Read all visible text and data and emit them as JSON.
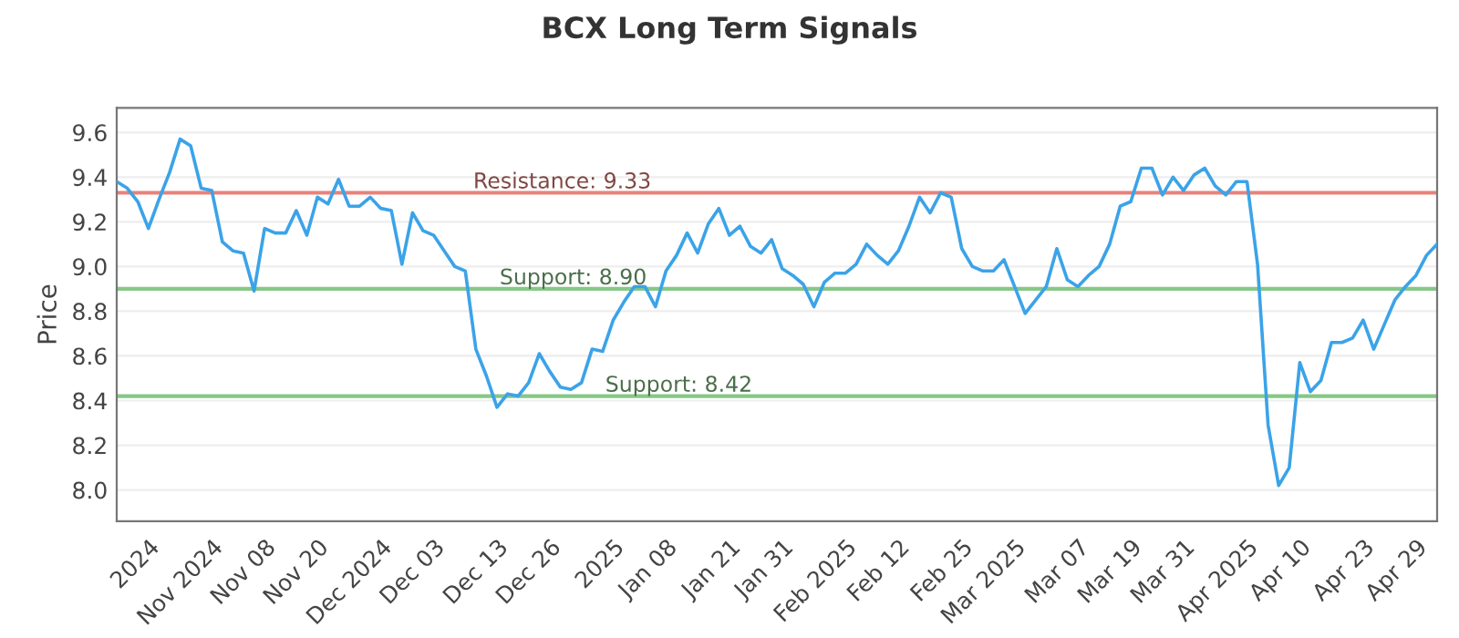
{
  "chart_data": {
    "type": "line",
    "title": "BCX Long Term Signals",
    "ylabel": "Price",
    "categories": [
      null,
      null,
      null,
      "2024",
      null,
      null,
      null,
      null,
      null,
      "Nov 2024",
      null,
      null,
      null,
      null,
      "Nov 08",
      null,
      null,
      null,
      null,
      "Nov 20",
      null,
      null,
      null,
      null,
      null,
      "Dec 2024",
      null,
      null,
      null,
      null,
      "Dec 03",
      null,
      null,
      null,
      null,
      null,
      "Dec 13",
      null,
      null,
      null,
      null,
      "Dec 26",
      null,
      null,
      null,
      null,
      null,
      "2025",
      null,
      null,
      null,
      null,
      "Jan 08",
      null,
      null,
      null,
      null,
      null,
      "Jan 21",
      null,
      null,
      null,
      null,
      "Jan 31",
      null,
      null,
      null,
      null,
      null,
      "Feb 2025",
      null,
      null,
      null,
      null,
      "Feb 12",
      null,
      null,
      null,
      null,
      null,
      "Feb 25",
      null,
      null,
      null,
      null,
      "Mar 2025",
      null,
      null,
      null,
      null,
      null,
      "Mar 07",
      null,
      null,
      null,
      null,
      "Mar 19",
      null,
      null,
      null,
      null,
      "Mar 31",
      null,
      null,
      null,
      null,
      null,
      "Apr 2025",
      null,
      null,
      null,
      null,
      "Apr 10",
      null,
      null,
      null,
      null,
      null,
      "Apr 23",
      null,
      null,
      null,
      null,
      "Apr 29",
      null,
      null
    ],
    "series": [
      {
        "color": "#3ba3e8",
        "values": [
          9.38,
          9.35,
          9.29,
          9.17,
          9.3,
          9.42,
          9.57,
          9.54,
          9.35,
          9.34,
          9.11,
          9.07,
          9.06,
          8.89,
          9.17,
          9.15,
          9.15,
          9.25,
          9.14,
          9.31,
          9.28,
          9.39,
          9.27,
          9.27,
          9.31,
          9.26,
          9.25,
          9.01,
          9.24,
          9.16,
          9.14,
          9.07,
          9.0,
          8.98,
          8.63,
          8.51,
          8.37,
          8.43,
          8.42,
          8.48,
          8.61,
          8.53,
          8.46,
          8.45,
          8.48,
          8.63,
          8.62,
          8.76,
          8.84,
          8.91,
          8.91,
          8.82,
          8.98,
          9.05,
          9.15,
          9.06,
          9.19,
          9.26,
          9.14,
          9.18,
          9.09,
          9.06,
          9.12,
          8.99,
          8.96,
          8.92,
          8.82,
          8.93,
          8.97,
          8.97,
          9.01,
          9.1,
          9.05,
          9.01,
          9.07,
          9.18,
          9.31,
          9.24,
          9.33,
          9.31,
          9.08,
          9.0,
          8.98,
          8.98,
          9.03,
          8.91,
          8.79,
          8.85,
          8.91,
          9.08,
          8.94,
          8.91,
          8.96,
          9.0,
          9.1,
          9.27,
          9.29,
          9.44,
          9.44,
          9.32,
          9.4,
          9.34,
          9.41,
          9.44,
          9.36,
          9.32,
          9.38,
          9.38,
          9.01,
          8.29,
          8.02,
          8.1,
          8.57,
          8.44,
          8.49,
          8.66,
          8.66,
          8.68,
          8.76,
          8.63,
          8.74,
          8.85,
          8.91,
          8.96,
          9.05,
          9.1
        ]
      }
    ],
    "ylim": [
      7.86,
      9.71
    ],
    "yticks": [
      {
        "value": 8,
        "label": "8.0"
      },
      8.2,
      8.4,
      8.6,
      8.8,
      {
        "value": 9,
        "label": "9.0"
      },
      9.2,
      9.4,
      9.6
    ],
    "ref_lines": [
      {
        "axis": "y",
        "value": 9.33,
        "label": "Resistance: 9.33",
        "color": "#e8817a"
      },
      {
        "axis": "y",
        "value": 8.9,
        "label": "Support: 8.90",
        "color": "#86c886"
      },
      {
        "axis": "y",
        "value": 8.42,
        "label": "Support: 8.42",
        "color": "#86c886"
      }
    ],
    "grid": "y",
    "legend": false,
    "marker": "none",
    "line_style": "solid"
  }
}
